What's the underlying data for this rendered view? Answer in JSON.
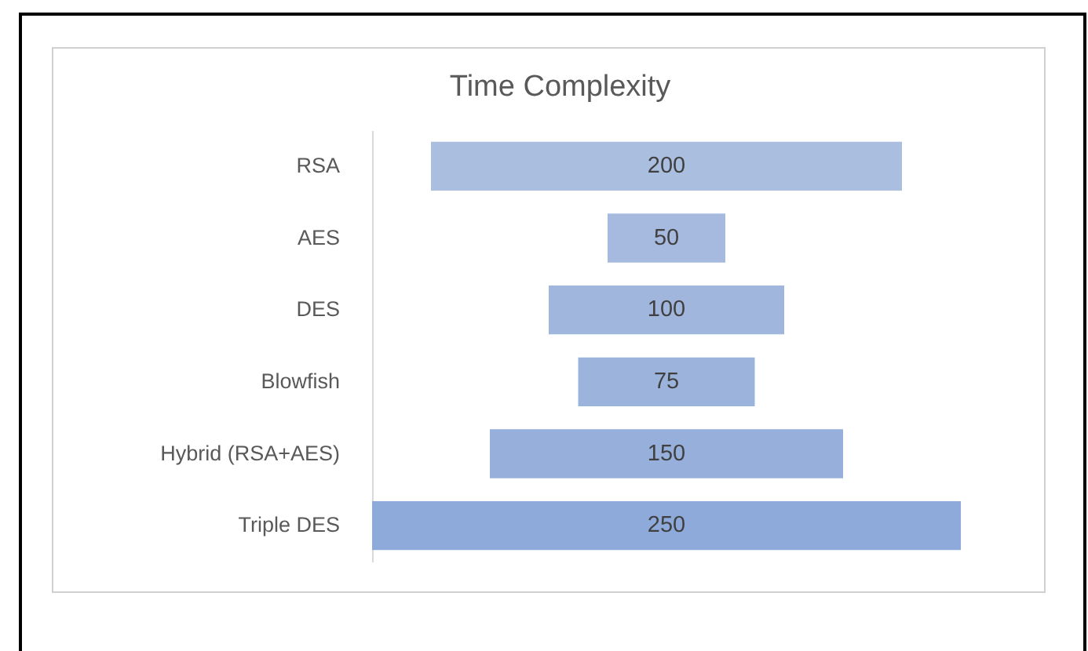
{
  "chart_data": {
    "type": "other",
    "title": "Time Complexity",
    "categories": [
      "RSA",
      "AES",
      "DES",
      "Blowfish",
      "Hybrid (RSA+AES)",
      "Triple DES"
    ],
    "values": [
      200,
      50,
      100,
      75,
      150,
      250
    ],
    "colors": [
      "#aabee0",
      "#a6badf",
      "#a1b6dd",
      "#9cb3dc",
      "#96afdb",
      "#8eaadb"
    ],
    "data_labels": true
  }
}
